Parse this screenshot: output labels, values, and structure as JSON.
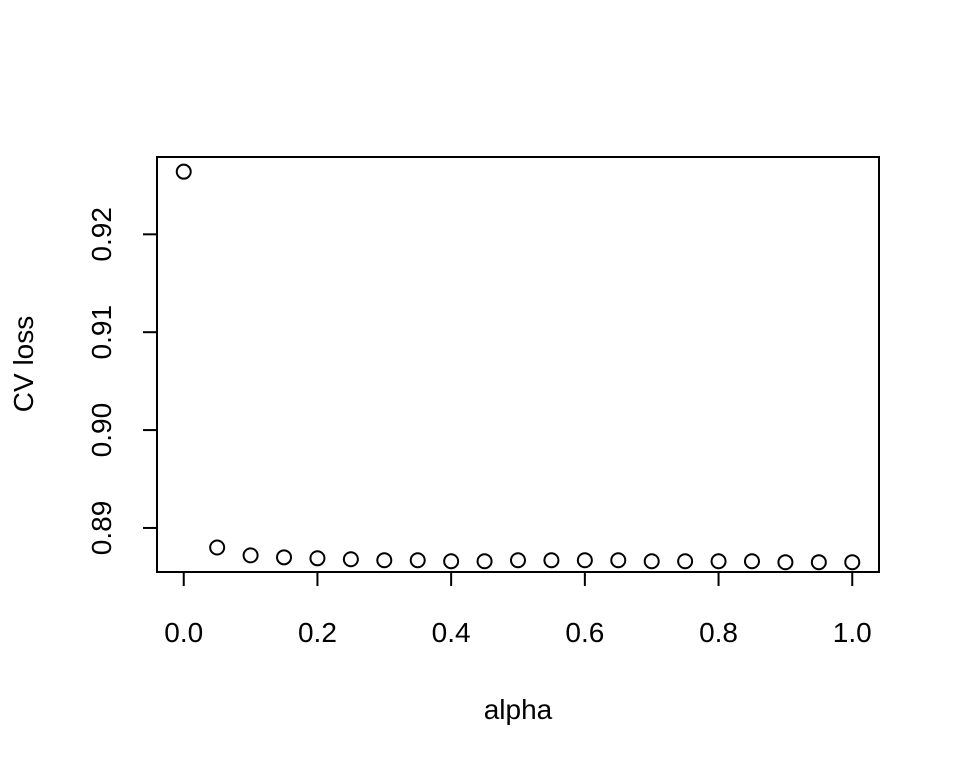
{
  "chart_data": {
    "type": "scatter",
    "title": "",
    "xlabel": "alpha",
    "ylabel": "CV loss",
    "x_ticks": [
      "0.0",
      "0.2",
      "0.4",
      "0.6",
      "0.8",
      "1.0"
    ],
    "y_ticks": [
      "0.89",
      "0.90",
      "0.91",
      "0.92"
    ],
    "xlim": [
      -0.04,
      1.04
    ],
    "ylim": [
      0.8855,
      0.9279
    ],
    "grid": false,
    "legend": "none",
    "marker": "open-circle",
    "series": [
      {
        "x": [
          0.0,
          0.05,
          0.1,
          0.15,
          0.2,
          0.25,
          0.3,
          0.35,
          0.4,
          0.45,
          0.5,
          0.55,
          0.6,
          0.65,
          0.7,
          0.75,
          0.8,
          0.85,
          0.9,
          0.95,
          1.0
        ],
        "y": [
          0.9264,
          0.888,
          0.8872,
          0.887,
          0.8869,
          0.8868,
          0.8867,
          0.8867,
          0.8866,
          0.8866,
          0.8867,
          0.8867,
          0.8867,
          0.8867,
          0.8866,
          0.8866,
          0.8866,
          0.8866,
          0.8865,
          0.8865,
          0.8865
        ]
      }
    ]
  }
}
